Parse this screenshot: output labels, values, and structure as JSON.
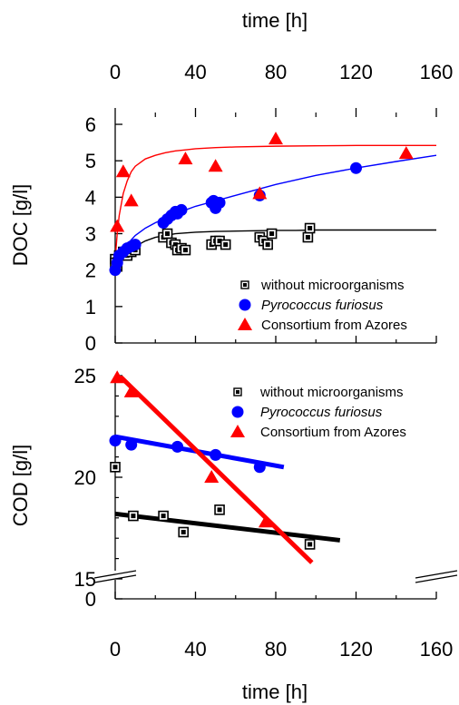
{
  "figure": {
    "top_axis_label": "time [h]",
    "bottom_axis_label": "time [h]"
  },
  "chart_data": [
    {
      "type": "scatter",
      "title": "",
      "xlabel": "time [h]",
      "ylabel": "DOC [g/l]",
      "xlim": [
        0,
        160
      ],
      "ylim": [
        0,
        6.2
      ],
      "x_ticks": [
        0,
        40,
        80,
        120,
        160
      ],
      "x_tick_labels": [
        "0",
        "40",
        "80",
        "120",
        "160"
      ],
      "y_ticks": [
        0,
        1,
        2,
        3,
        4,
        5,
        6
      ],
      "y_tick_labels": [
        "0",
        "1",
        "2",
        "3",
        "4",
        "5",
        "6"
      ],
      "grid": false,
      "legend": "bottom-right",
      "series": [
        {
          "name": "without microorganisms",
          "marker": "square",
          "color": "#000000",
          "x": [
            0,
            0,
            1,
            2,
            4,
            6,
            8,
            10,
            24,
            26,
            28,
            30,
            31,
            33,
            35,
            48,
            50,
            52,
            55,
            72,
            74,
            76,
            78,
            96,
            97
          ],
          "y": [
            2.3,
            2.2,
            2.1,
            2.4,
            2.5,
            2.4,
            2.5,
            2.55,
            2.9,
            3.0,
            2.75,
            2.7,
            2.55,
            2.6,
            2.55,
            2.7,
            2.8,
            2.8,
            2.7,
            2.9,
            2.8,
            2.7,
            3.0,
            2.9,
            3.15
          ],
          "fit_x": [
            0,
            2,
            5,
            10,
            15,
            20,
            30,
            40,
            50,
            60,
            70,
            80,
            90,
            100,
            120,
            140,
            160
          ],
          "fit_y": [
            2.0,
            2.22,
            2.43,
            2.65,
            2.8,
            2.9,
            3.0,
            3.04,
            3.06,
            3.07,
            3.08,
            3.09,
            3.09,
            3.1,
            3.1,
            3.1,
            3.1
          ]
        },
        {
          "name": "Pyrococcus furiosus",
          "marker": "circle",
          "color": "#0000ff",
          "x": [
            0,
            1,
            2,
            4,
            6,
            8,
            10,
            24,
            26,
            28,
            30,
            31,
            33,
            48,
            49,
            50,
            52,
            72,
            120
          ],
          "y": [
            2.0,
            2.2,
            2.4,
            2.5,
            2.6,
            2.65,
            2.7,
            3.3,
            3.4,
            3.5,
            3.6,
            3.55,
            3.65,
            3.85,
            3.9,
            3.7,
            3.85,
            4.05,
            4.8
          ],
          "fit_x": [
            0,
            2,
            5,
            10,
            15,
            20,
            30,
            40,
            50,
            60,
            70,
            80,
            100,
            120,
            140,
            160
          ],
          "fit_y": [
            1.9,
            2.35,
            2.65,
            2.95,
            3.15,
            3.3,
            3.55,
            3.75,
            3.9,
            4.05,
            4.2,
            4.35,
            4.6,
            4.8,
            4.98,
            5.15
          ]
        },
        {
          "name": "Consortium from Azores",
          "marker": "triangle",
          "color": "#ff0000",
          "x": [
            1,
            4,
            8,
            35,
            50,
            72,
            80,
            145
          ],
          "y": [
            3.2,
            4.7,
            3.9,
            5.05,
            4.85,
            4.1,
            5.6,
            5.2
          ],
          "fit_x": [
            0,
            1,
            2,
            4,
            6,
            8,
            10,
            15,
            20,
            25,
            30,
            35,
            40,
            50,
            60,
            80,
            100,
            120,
            140,
            160
          ],
          "fit_y": [
            2.3,
            3.0,
            3.5,
            4.1,
            4.45,
            4.7,
            4.85,
            5.05,
            5.15,
            5.22,
            5.27,
            5.3,
            5.33,
            5.36,
            5.38,
            5.4,
            5.41,
            5.42,
            5.42,
            5.42
          ]
        }
      ]
    },
    {
      "type": "scatter",
      "title": "",
      "xlabel": "time [h]",
      "ylabel": "COD [g/l]",
      "xlim": [
        0,
        160
      ],
      "ylim": [
        15,
        25
      ],
      "axis_break": "y between 0 and 15",
      "x_ticks": [
        0,
        40,
        80,
        120,
        160
      ],
      "x_tick_labels": [
        "0",
        "40",
        "80",
        "120",
        "160"
      ],
      "y_ticks": [
        0,
        15,
        20,
        25
      ],
      "y_tick_labels": [
        "0",
        "15",
        "20",
        "25"
      ],
      "grid": false,
      "legend": "top-right",
      "series": [
        {
          "name": "without microorganisms",
          "marker": "square",
          "color": "#000000",
          "x": [
            0,
            9,
            24,
            34,
            52,
            97
          ],
          "y": [
            20.5,
            18.1,
            18.1,
            17.3,
            18.4,
            16.7
          ],
          "fit_x": [
            0,
            112
          ],
          "fit_y": [
            18.2,
            16.9
          ]
        },
        {
          "name": "Pyrococcus furiosus",
          "marker": "circle",
          "color": "#0000ff",
          "x": [
            0,
            8,
            31,
            50,
            72
          ],
          "y": [
            21.8,
            21.6,
            21.5,
            21.1,
            20.5
          ],
          "fit_x": [
            0,
            84
          ],
          "fit_y": [
            22.0,
            20.5
          ]
        },
        {
          "name": "Consortium from Azores",
          "marker": "triangle",
          "color": "#ff0000",
          "x": [
            1,
            8,
            48,
            75
          ],
          "y": [
            24.9,
            24.2,
            20.0,
            17.8
          ],
          "fit_x": [
            0,
            98
          ],
          "fit_y": [
            25.2,
            15.8
          ]
        }
      ]
    }
  ]
}
